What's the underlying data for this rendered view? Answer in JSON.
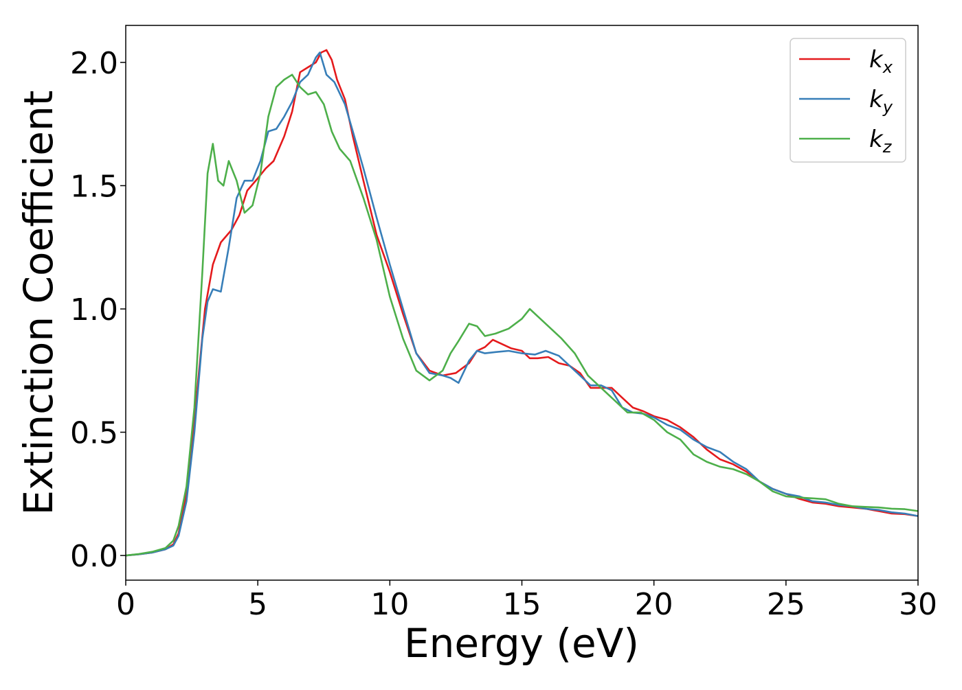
{
  "chart_data": {
    "type": "line",
    "title": "",
    "xlabel": "Energy (eV)",
    "ylabel": "Extinction Coefficient",
    "xlim": [
      0,
      30
    ],
    "ylim": [
      -0.1,
      2.15
    ],
    "xticks": [
      0,
      5,
      10,
      15,
      20,
      25,
      30
    ],
    "xtick_labels": [
      "0",
      "5",
      "10",
      "15",
      "20",
      "25",
      "30"
    ],
    "yticks": [
      0.0,
      0.5,
      1.0,
      1.5,
      2.0
    ],
    "ytick_labels": [
      "0.0",
      "0.5",
      "1.0",
      "1.5",
      "2.0"
    ],
    "grid": false,
    "legend_position": "top-right",
    "series": [
      {
        "name": "kx",
        "base": "k",
        "subscript": "x",
        "color": "#e41a1c",
        "points": [
          [
            0,
            0
          ],
          [
            0.5,
            0.005
          ],
          [
            1.0,
            0.012
          ],
          [
            1.5,
            0.025
          ],
          [
            1.8,
            0.045
          ],
          [
            2.0,
            0.09
          ],
          [
            2.3,
            0.25
          ],
          [
            2.6,
            0.55
          ],
          [
            3.0,
            1.0
          ],
          [
            3.3,
            1.18
          ],
          [
            3.6,
            1.27
          ],
          [
            4.0,
            1.32
          ],
          [
            4.3,
            1.38
          ],
          [
            4.6,
            1.48
          ],
          [
            5.0,
            1.53
          ],
          [
            5.3,
            1.57
          ],
          [
            5.6,
            1.6
          ],
          [
            6.0,
            1.7
          ],
          [
            6.3,
            1.8
          ],
          [
            6.6,
            1.96
          ],
          [
            6.9,
            1.98
          ],
          [
            7.2,
            2.0
          ],
          [
            7.4,
            2.04
          ],
          [
            7.6,
            2.05
          ],
          [
            7.8,
            2.01
          ],
          [
            8.0,
            1.93
          ],
          [
            8.3,
            1.85
          ],
          [
            8.6,
            1.7
          ],
          [
            9.0,
            1.52
          ],
          [
            9.5,
            1.3
          ],
          [
            10.0,
            1.15
          ],
          [
            10.5,
            0.98
          ],
          [
            11.0,
            0.82
          ],
          [
            11.5,
            0.75
          ],
          [
            12.0,
            0.73
          ],
          [
            12.5,
            0.74
          ],
          [
            13.0,
            0.78
          ],
          [
            13.3,
            0.83
          ],
          [
            13.6,
            0.845
          ],
          [
            13.9,
            0.875
          ],
          [
            14.2,
            0.86
          ],
          [
            14.6,
            0.84
          ],
          [
            15.0,
            0.83
          ],
          [
            15.3,
            0.8
          ],
          [
            15.6,
            0.8
          ],
          [
            16.0,
            0.805
          ],
          [
            16.4,
            0.78
          ],
          [
            16.8,
            0.77
          ],
          [
            17.2,
            0.74
          ],
          [
            17.6,
            0.68
          ],
          [
            18.0,
            0.68
          ],
          [
            18.4,
            0.68
          ],
          [
            18.8,
            0.64
          ],
          [
            19.2,
            0.6
          ],
          [
            19.6,
            0.585
          ],
          [
            20.0,
            0.565
          ],
          [
            20.5,
            0.55
          ],
          [
            21.0,
            0.52
          ],
          [
            21.5,
            0.48
          ],
          [
            22.0,
            0.43
          ],
          [
            22.5,
            0.39
          ],
          [
            23.0,
            0.37
          ],
          [
            23.5,
            0.34
          ],
          [
            24.0,
            0.3
          ],
          [
            24.5,
            0.27
          ],
          [
            25.0,
            0.25
          ],
          [
            25.5,
            0.23
          ],
          [
            26.0,
            0.215
          ],
          [
            26.5,
            0.21
          ],
          [
            27.0,
            0.2
          ],
          [
            27.5,
            0.195
          ],
          [
            28.0,
            0.19
          ],
          [
            28.5,
            0.18
          ],
          [
            29.0,
            0.17
          ],
          [
            29.5,
            0.168
          ],
          [
            30.0,
            0.16
          ]
        ]
      },
      {
        "name": "ky",
        "base": "k",
        "subscript": "y",
        "color": "#377eb8",
        "points": [
          [
            0,
            0
          ],
          [
            0.5,
            0.005
          ],
          [
            1.0,
            0.012
          ],
          [
            1.5,
            0.025
          ],
          [
            1.8,
            0.04
          ],
          [
            2.0,
            0.08
          ],
          [
            2.3,
            0.22
          ],
          [
            2.6,
            0.5
          ],
          [
            2.9,
            0.88
          ],
          [
            3.1,
            1.03
          ],
          [
            3.3,
            1.08
          ],
          [
            3.6,
            1.07
          ],
          [
            3.9,
            1.25
          ],
          [
            4.2,
            1.45
          ],
          [
            4.5,
            1.52
          ],
          [
            4.8,
            1.52
          ],
          [
            5.1,
            1.6
          ],
          [
            5.4,
            1.72
          ],
          [
            5.7,
            1.73
          ],
          [
            6.0,
            1.78
          ],
          [
            6.3,
            1.84
          ],
          [
            6.6,
            1.92
          ],
          [
            6.9,
            1.95
          ],
          [
            7.2,
            2.02
          ],
          [
            7.35,
            2.04
          ],
          [
            7.6,
            1.95
          ],
          [
            7.9,
            1.92
          ],
          [
            8.3,
            1.83
          ],
          [
            8.6,
            1.72
          ],
          [
            9.0,
            1.57
          ],
          [
            9.5,
            1.37
          ],
          [
            10.0,
            1.18
          ],
          [
            10.5,
            1.0
          ],
          [
            11.0,
            0.82
          ],
          [
            11.5,
            0.74
          ],
          [
            12.0,
            0.73
          ],
          [
            12.3,
            0.72
          ],
          [
            12.6,
            0.7
          ],
          [
            13.0,
            0.79
          ],
          [
            13.3,
            0.83
          ],
          [
            13.6,
            0.82
          ],
          [
            14.0,
            0.825
          ],
          [
            14.5,
            0.83
          ],
          [
            15.0,
            0.82
          ],
          [
            15.5,
            0.815
          ],
          [
            15.9,
            0.83
          ],
          [
            16.4,
            0.81
          ],
          [
            16.8,
            0.77
          ],
          [
            17.2,
            0.73
          ],
          [
            17.6,
            0.69
          ],
          [
            18.0,
            0.69
          ],
          [
            18.4,
            0.67
          ],
          [
            18.8,
            0.6
          ],
          [
            19.2,
            0.58
          ],
          [
            19.6,
            0.575
          ],
          [
            20.0,
            0.56
          ],
          [
            20.5,
            0.53
          ],
          [
            21.0,
            0.51
          ],
          [
            21.5,
            0.47
          ],
          [
            22.0,
            0.44
          ],
          [
            22.5,
            0.42
          ],
          [
            23.0,
            0.38
          ],
          [
            23.5,
            0.35
          ],
          [
            24.0,
            0.3
          ],
          [
            24.5,
            0.27
          ],
          [
            25.0,
            0.25
          ],
          [
            25.5,
            0.24
          ],
          [
            26.0,
            0.22
          ],
          [
            26.5,
            0.215
          ],
          [
            27.0,
            0.205
          ],
          [
            27.5,
            0.2
          ],
          [
            28.0,
            0.19
          ],
          [
            28.5,
            0.185
          ],
          [
            29.0,
            0.175
          ],
          [
            29.5,
            0.17
          ],
          [
            30.0,
            0.16
          ]
        ]
      },
      {
        "name": "kz",
        "base": "k",
        "subscript": "z",
        "color": "#4daf4a",
        "points": [
          [
            0,
            0
          ],
          [
            0.5,
            0.006
          ],
          [
            1.0,
            0.015
          ],
          [
            1.5,
            0.03
          ],
          [
            1.8,
            0.06
          ],
          [
            2.0,
            0.12
          ],
          [
            2.3,
            0.28
          ],
          [
            2.6,
            0.6
          ],
          [
            2.9,
            1.15
          ],
          [
            3.1,
            1.55
          ],
          [
            3.3,
            1.67
          ],
          [
            3.5,
            1.52
          ],
          [
            3.7,
            1.5
          ],
          [
            3.9,
            1.6
          ],
          [
            4.2,
            1.52
          ],
          [
            4.5,
            1.39
          ],
          [
            4.8,
            1.42
          ],
          [
            5.1,
            1.55
          ],
          [
            5.4,
            1.78
          ],
          [
            5.7,
            1.9
          ],
          [
            6.0,
            1.93
          ],
          [
            6.3,
            1.95
          ],
          [
            6.6,
            1.9
          ],
          [
            6.9,
            1.87
          ],
          [
            7.2,
            1.88
          ],
          [
            7.5,
            1.83
          ],
          [
            7.8,
            1.72
          ],
          [
            8.1,
            1.65
          ],
          [
            8.5,
            1.6
          ],
          [
            9.0,
            1.45
          ],
          [
            9.5,
            1.28
          ],
          [
            10.0,
            1.05
          ],
          [
            10.5,
            0.88
          ],
          [
            11.0,
            0.75
          ],
          [
            11.5,
            0.71
          ],
          [
            12.0,
            0.75
          ],
          [
            12.3,
            0.82
          ],
          [
            12.6,
            0.87
          ],
          [
            13.0,
            0.94
          ],
          [
            13.3,
            0.93
          ],
          [
            13.6,
            0.89
          ],
          [
            14.0,
            0.9
          ],
          [
            14.5,
            0.92
          ],
          [
            15.0,
            0.96
          ],
          [
            15.3,
            1.0
          ],
          [
            15.6,
            0.97
          ],
          [
            16.0,
            0.93
          ],
          [
            16.5,
            0.88
          ],
          [
            17.0,
            0.82
          ],
          [
            17.5,
            0.73
          ],
          [
            18.0,
            0.68
          ],
          [
            18.5,
            0.63
          ],
          [
            19.0,
            0.58
          ],
          [
            19.5,
            0.58
          ],
          [
            20.0,
            0.55
          ],
          [
            20.5,
            0.5
          ],
          [
            21.0,
            0.47
          ],
          [
            21.5,
            0.41
          ],
          [
            22.0,
            0.38
          ],
          [
            22.5,
            0.36
          ],
          [
            23.0,
            0.35
          ],
          [
            23.5,
            0.33
          ],
          [
            24.0,
            0.3
          ],
          [
            24.5,
            0.26
          ],
          [
            25.0,
            0.24
          ],
          [
            25.5,
            0.235
          ],
          [
            26.0,
            0.232
          ],
          [
            26.5,
            0.228
          ],
          [
            27.0,
            0.21
          ],
          [
            27.5,
            0.2
          ],
          [
            28.0,
            0.197
          ],
          [
            28.5,
            0.195
          ],
          [
            29.0,
            0.19
          ],
          [
            29.5,
            0.188
          ],
          [
            30.0,
            0.18
          ]
        ]
      }
    ]
  }
}
